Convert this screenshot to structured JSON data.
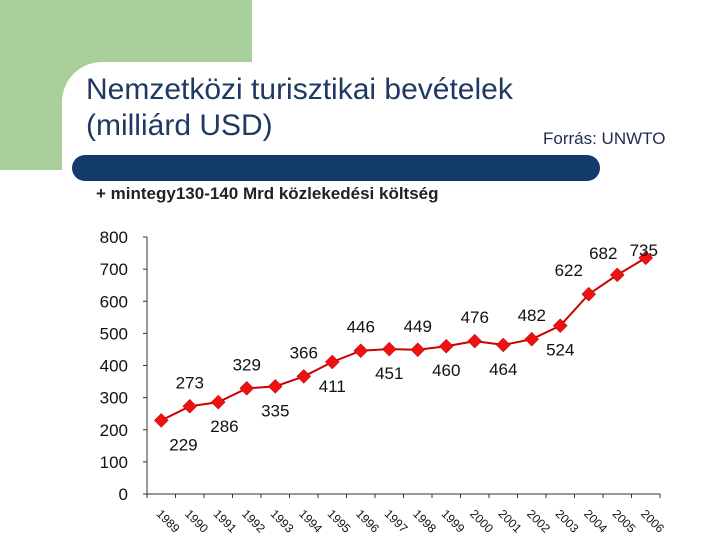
{
  "header": {
    "title_line1": "Nemzetközi turisztikai bevételek",
    "title_line2": "(milliárd USD)",
    "source": "Forrás: UNWTO",
    "note": "+ mintegy130-140 Mrd közlekedési költség"
  },
  "colors": {
    "background_accent": "#a9cf9a",
    "title": "#1f3864",
    "bar": "#123a6b",
    "line": "#cc0000",
    "marker": "#ee1111"
  },
  "chart_data": {
    "type": "line",
    "title": "Nemzetközi turisztikai bevételek (milliárd USD)",
    "xlabel": "",
    "ylabel": "",
    "ylim": [
      0,
      800
    ],
    "yticks": [
      0,
      100,
      200,
      300,
      400,
      500,
      600,
      700,
      800
    ],
    "grid": false,
    "legend": "none",
    "categories": [
      "1989",
      "1990",
      "1991",
      "1992",
      "1993",
      "1994",
      "1995",
      "1996",
      "1997",
      "1998",
      "1999",
      "2000",
      "2001",
      "2002",
      "2003",
      "2004",
      "2005",
      "2006"
    ],
    "series": [
      {
        "values": [
          229,
          273,
          286,
          329,
          335,
          366,
          411,
          446,
          451,
          449,
          460,
          476,
          464,
          482,
          524,
          622,
          682,
          735
        ],
        "labels": [
          "229",
          "273",
          "286",
          "329",
          "335",
          "366",
          "411",
          "446",
          "451",
          "449",
          "460",
          "476",
          "464",
          "482",
          "524",
          "622",
          "682",
          "735"
        ]
      }
    ]
  }
}
